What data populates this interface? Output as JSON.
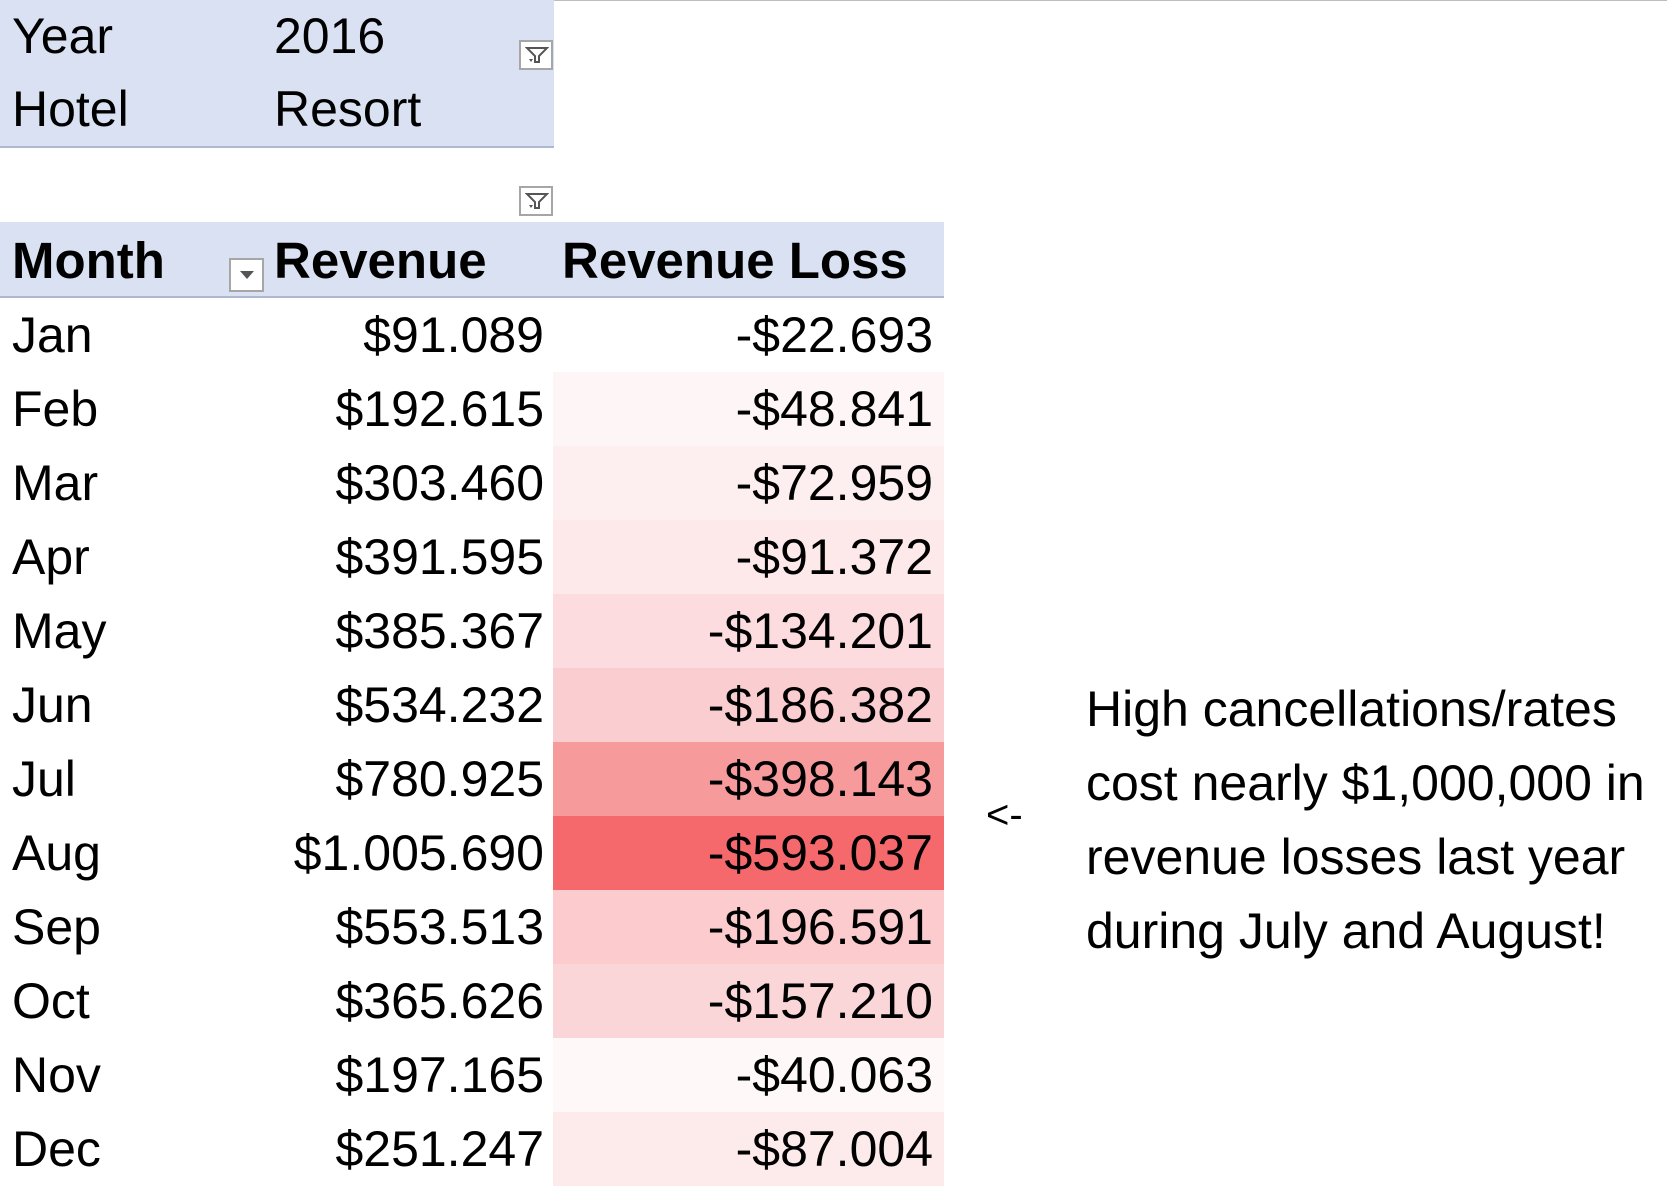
{
  "filters": [
    {
      "label": "Year",
      "value": "2016"
    },
    {
      "label": "Hotel",
      "value": "Resort"
    }
  ],
  "table": {
    "headers": {
      "month": "Month",
      "revenue": "Revenue",
      "loss": "Revenue Loss"
    },
    "rows": [
      {
        "month": "Jan",
        "revenue": "$91.089",
        "loss": "-$22.693",
        "heat": "#ffffff"
      },
      {
        "month": "Feb",
        "revenue": "$192.615",
        "loss": "-$48.841",
        "heat": "#fef6f6"
      },
      {
        "month": "Mar",
        "revenue": "$303.460",
        "loss": "-$72.959",
        "heat": "#fdeeef"
      },
      {
        "month": "Apr",
        "revenue": "$391.595",
        "loss": "-$91.372",
        "heat": "#fde9ea"
      },
      {
        "month": "May",
        "revenue": "$385.367",
        "loss": "-$134.201",
        "heat": "#fcdcde"
      },
      {
        "month": "Jun",
        "revenue": "$534.232",
        "loss": "-$186.382",
        "heat": "#facdd0"
      },
      {
        "month": "Jul",
        "revenue": "$780.925",
        "loss": "-$398.143",
        "heat": "#f69a9c"
      },
      {
        "month": "Aug",
        "revenue": "$1.005.690",
        "loss": "-$593.037",
        "heat": "#f5696c"
      },
      {
        "month": "Sep",
        "revenue": "$553.513",
        "loss": "-$196.591",
        "heat": "#fbcbce"
      },
      {
        "month": "Oct",
        "revenue": "$365.626",
        "loss": "-$157.210",
        "heat": "#fbd6d8"
      },
      {
        "month": "Nov",
        "revenue": "$197.165",
        "loss": "-$40.063",
        "heat": "#fef8f8"
      },
      {
        "month": "Dec",
        "revenue": "$251.247",
        "loss": "-$87.004",
        "heat": "#fdeaeb"
      }
    ]
  },
  "annotation": {
    "arrow": "<-",
    "lines": [
      "High cancellations/rates",
      "cost nearly $1,000,000 in",
      "revenue losses last year",
      "during July and August!"
    ]
  },
  "colors": {
    "header_fill": "#d9e1f2",
    "heat_max": "#f5696c"
  },
  "icons": {
    "filter_button": "filter-funnel-icon",
    "sort_button": "dropdown-arrow-icon"
  }
}
